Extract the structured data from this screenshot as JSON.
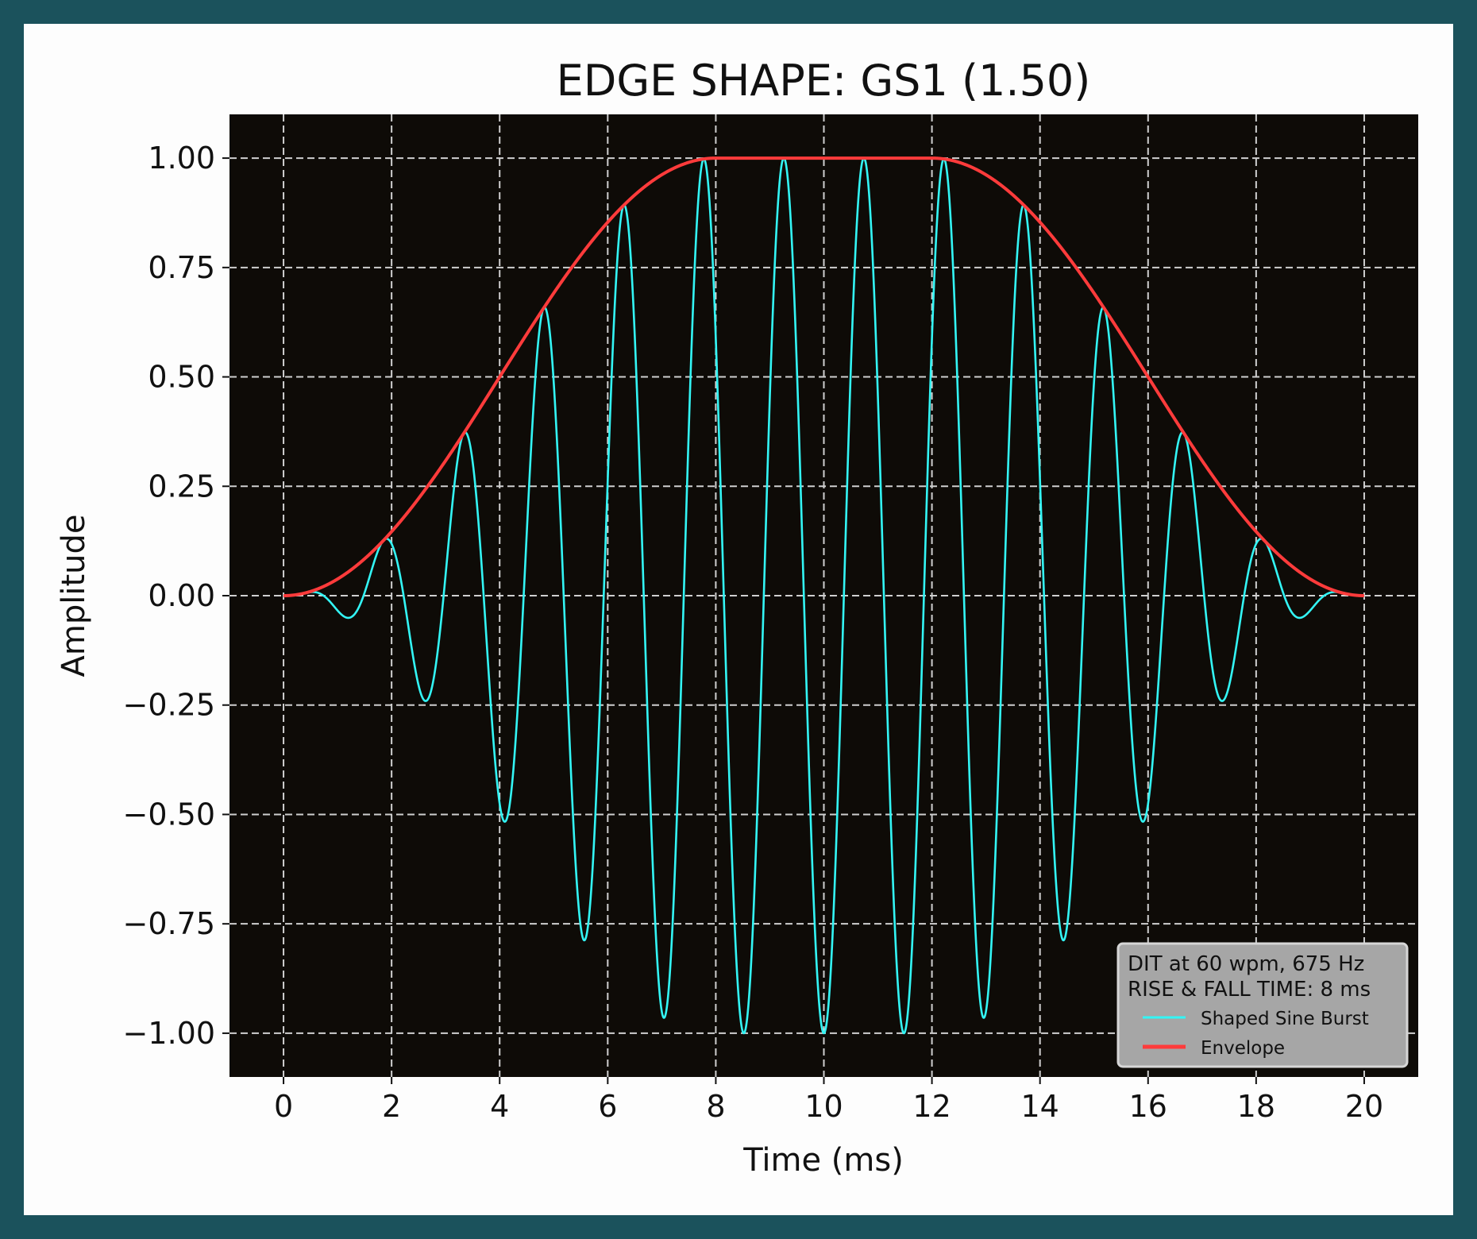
{
  "chart_data": {
    "type": "line",
    "title": "EDGE SHAPE: GS1 (1.50)",
    "xlabel": "Time (ms)",
    "ylabel": "Amplitude",
    "xlim": [
      -1,
      21
    ],
    "ylim": [
      -1.1,
      1.1
    ],
    "xticks": [
      0,
      2,
      4,
      6,
      8,
      10,
      12,
      14,
      16,
      18,
      20
    ],
    "yticks": [
      1.0,
      0.75,
      0.5,
      0.25,
      0.0,
      -0.25,
      -0.5,
      -0.75,
      -1.0
    ],
    "ytick_labels": [
      "1.00",
      "0.75",
      "0.50",
      "0.25",
      "0.00",
      "−0.25",
      "−0.50",
      "−0.75",
      "−1.00"
    ],
    "xtick_labels": [
      "0",
      "2",
      "4",
      "6",
      "8",
      "10",
      "12",
      "14",
      "16",
      "18",
      "20"
    ],
    "grid": true,
    "signal": {
      "duration_ms": 20,
      "frequency_hz": 675,
      "rise_ms": 8,
      "fall_ms": 8
    },
    "legend": {
      "placement": "lower-right",
      "title_lines": [
        "DIT at 60 wpm, 675 Hz",
        "RISE & FALL TIME: 8 ms"
      ],
      "entries": [
        {
          "label": "Shaped Sine Burst",
          "color": "#33f5f5"
        },
        {
          "label": "Envelope",
          "color": "#ff3b3b"
        }
      ]
    },
    "series": [
      {
        "name": "Shaped Sine Burst",
        "color": "#33f5f5"
      },
      {
        "name": "Envelope",
        "color": "#ff3b3b"
      }
    ],
    "colors": {
      "plot_bg": "#0e0b07",
      "grid": "#cfcfcf",
      "frame": "#1b525c"
    }
  }
}
